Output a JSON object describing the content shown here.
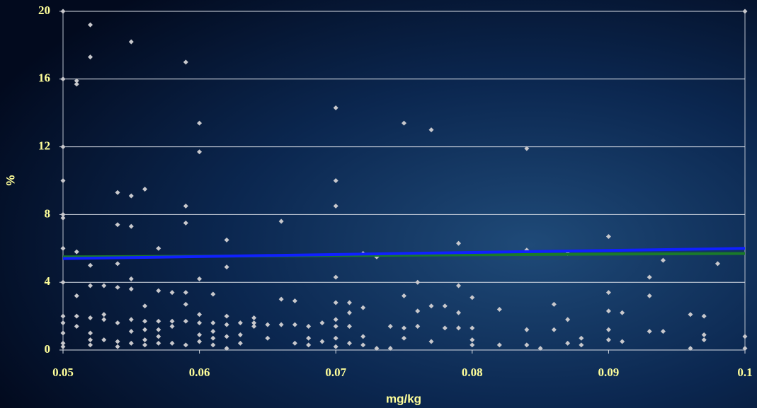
{
  "chart_data": {
    "type": "scatter",
    "x_label": "mg/kg",
    "y_label": "%",
    "xlim": [
      0.05,
      0.1
    ],
    "xticks": [
      0.05,
      0.06,
      0.07,
      0.08,
      0.09,
      0.1
    ],
    "ylim": [
      0,
      20
    ],
    "yticks": [
      0,
      4,
      8,
      12,
      16,
      20
    ],
    "grid": true,
    "series": [
      {
        "mode": "markers",
        "color": "#c8c8cc",
        "x": [
          0.05,
          0.05,
          0.05,
          0.05,
          0.05,
          0.05,
          0.05,
          0.05,
          0.05,
          0.05,
          0.05,
          0.05,
          0.05,
          0.051,
          0.051,
          0.051,
          0.051,
          0.051,
          0.051,
          0.052,
          0.052,
          0.052,
          0.052,
          0.052,
          0.052,
          0.052,
          0.052,
          0.053,
          0.053,
          0.053,
          0.053,
          0.054,
          0.054,
          0.054,
          0.054,
          0.054,
          0.054,
          0.054,
          0.055,
          0.055,
          0.055,
          0.055,
          0.055,
          0.055,
          0.055,
          0.055,
          0.056,
          0.056,
          0.056,
          0.056,
          0.056,
          0.056,
          0.057,
          0.057,
          0.057,
          0.057,
          0.057,
          0.057,
          0.058,
          0.058,
          0.058,
          0.058,
          0.059,
          0.059,
          0.059,
          0.059,
          0.059,
          0.059,
          0.059,
          0.06,
          0.06,
          0.06,
          0.06,
          0.06,
          0.06,
          0.06,
          0.061,
          0.061,
          0.061,
          0.061,
          0.061,
          0.062,
          0.062,
          0.062,
          0.062,
          0.062,
          0.062,
          0.063,
          0.063,
          0.063,
          0.064,
          0.064,
          0.064,
          0.065,
          0.065,
          0.066,
          0.066,
          0.066,
          0.067,
          0.067,
          0.067,
          0.068,
          0.068,
          0.068,
          0.069,
          0.069,
          0.07,
          0.07,
          0.07,
          0.07,
          0.07,
          0.07,
          0.07,
          0.07,
          0.07,
          0.071,
          0.071,
          0.071,
          0.071,
          0.072,
          0.072,
          0.072,
          0.072,
          0.073,
          0.073,
          0.074,
          0.074,
          0.075,
          0.075,
          0.075,
          0.075,
          0.076,
          0.076,
          0.076,
          0.077,
          0.077,
          0.077,
          0.078,
          0.078,
          0.079,
          0.079,
          0.079,
          0.079,
          0.08,
          0.08,
          0.08,
          0.08,
          0.082,
          0.082,
          0.084,
          0.084,
          0.084,
          0.084,
          0.085,
          0.086,
          0.086,
          0.087,
          0.087,
          0.087,
          0.088,
          0.088,
          0.09,
          0.09,
          0.09,
          0.09,
          0.09,
          0.091,
          0.091,
          0.093,
          0.093,
          0.093,
          0.094,
          0.094,
          0.096,
          0.096,
          0.097,
          0.097,
          0.097,
          0.098,
          0.1,
          0.1,
          0.1
        ],
        "y": [
          20,
          16,
          12,
          10,
          8,
          7.8,
          6,
          4,
          2,
          1.6,
          1,
          0.4,
          0.2,
          15.9,
          15.7,
          5.8,
          3.2,
          2,
          1.4,
          19.2,
          17.3,
          5,
          3.8,
          1.9,
          1,
          0.6,
          0.3,
          3.8,
          2.1,
          1.8,
          0.6,
          9.3,
          7.4,
          5.1,
          3.7,
          1.6,
          0.5,
          0.2,
          18.2,
          9.1,
          7.3,
          4.2,
          3.6,
          1.8,
          1.1,
          0.4,
          9.5,
          2.6,
          1.7,
          1.2,
          0.6,
          0.3,
          6,
          3.5,
          1.7,
          1.2,
          0.8,
          0.4,
          3.4,
          1.7,
          1.4,
          0.4,
          17,
          8.5,
          7.5,
          3.4,
          2.7,
          1.7,
          0.3,
          13.4,
          11.7,
          4.2,
          2.1,
          1.6,
          0.9,
          0.5,
          3.3,
          1.6,
          1.1,
          0.7,
          0.3,
          6.5,
          4.9,
          2,
          1.5,
          0.8,
          0.1,
          1.6,
          0.9,
          0.4,
          1.9,
          1.6,
          1.4,
          1.5,
          0.7,
          7.6,
          3,
          1.5,
          2.9,
          1.5,
          0.4,
          1.4,
          0.7,
          0.3,
          1.6,
          0.5,
          14.3,
          10,
          8.5,
          4.3,
          2.8,
          1.8,
          1.4,
          0.7,
          0.2,
          2.8,
          2.2,
          1.4,
          0.4,
          5.7,
          2.5,
          0.8,
          0.3,
          5.5,
          0.1,
          1.4,
          0.1,
          13.4,
          3.2,
          1.3,
          0.7,
          4,
          2.3,
          1.4,
          13,
          2.6,
          0.5,
          2.6,
          1.3,
          6.3,
          3.8,
          2.2,
          1.3,
          3.1,
          1.3,
          0.6,
          0.3,
          2.4,
          0.3,
          11.9,
          5.9,
          1.2,
          0.3,
          0.1,
          2.7,
          1.2,
          5.7,
          1.8,
          0.4,
          0.7,
          0.3,
          6.7,
          3.4,
          2.3,
          1.2,
          0.6,
          2.2,
          0.5,
          4.3,
          3.2,
          1.1,
          5.3,
          1.1,
          2.1,
          0.1,
          2,
          0.9,
          0.6,
          5.1,
          20,
          0.8,
          0.1
        ]
      },
      {
        "mode": "line",
        "color": "#1a7a2a",
        "x": [
          0.05,
          0.1
        ],
        "y": [
          5.5,
          5.7
        ]
      },
      {
        "mode": "line",
        "color": "#1020ff",
        "x": [
          0.05,
          0.1
        ],
        "y": [
          5.4,
          6.0
        ]
      }
    ]
  }
}
